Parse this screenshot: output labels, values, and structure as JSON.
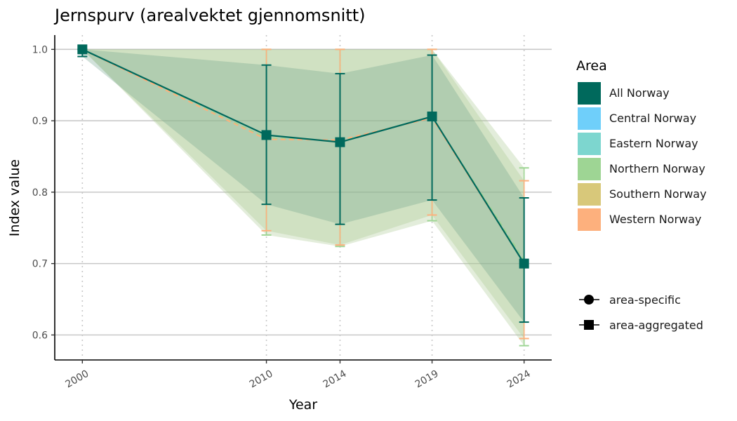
{
  "chart_data": {
    "type": "line",
    "title": "Jernspurv (arealvektet gjennomsnitt)",
    "xlabel": "Year",
    "ylabel": "Index value",
    "x": [
      2000,
      2010,
      2014,
      2019,
      2024
    ],
    "xlim": [
      1998.5,
      2025.5
    ],
    "ylim": [
      0.565,
      1.02
    ],
    "y_ticks": [
      0.6,
      0.7,
      0.8,
      0.9,
      1.0
    ],
    "y_tick_labels": [
      "0.6",
      "0.7",
      "0.8",
      "0.9",
      "1.0"
    ],
    "x_tick_labels": [
      "2000",
      "2010",
      "2014",
      "2019",
      "2024"
    ],
    "grid": {
      "horizontal_major": true,
      "vertical_dotted": true
    },
    "legend_position": "right",
    "legend_title": "Area",
    "areas": [
      {
        "name": "All Norway",
        "color": "#00695C"
      },
      {
        "name": "Central Norway",
        "color": "#6FCFFA"
      },
      {
        "name": "Eastern Norway",
        "color": "#7DD6CF"
      },
      {
        "name": "Northern Norway",
        "color": "#9ED594"
      },
      {
        "name": "Southern Norway",
        "color": "#D8C87A"
      },
      {
        "name": "Western Norway",
        "color": "#FDB07D"
      }
    ],
    "shape_legend": [
      {
        "name": "area-specific",
        "shape": "circle"
      },
      {
        "name": "area-aggregated",
        "shape": "square"
      }
    ],
    "series": [
      {
        "name": "All Norway",
        "role": "area-aggregated",
        "color": "#00695C",
        "values": [
          1.0,
          0.88,
          0.87,
          0.906,
          0.7
        ],
        "lower": [
          0.99,
          0.783,
          0.755,
          0.789,
          0.618
        ],
        "upper": [
          1.0,
          0.978,
          0.966,
          0.992,
          0.792
        ]
      },
      {
        "name": "Northern Norway",
        "role": "area-specific",
        "color": "#9ED594",
        "values": [
          1.0,
          0.876,
          0.872,
          0.905,
          0.705
        ],
        "lower": [
          1.0,
          0.74,
          0.724,
          0.76,
          0.585
        ],
        "upper": [
          1.0,
          1.0,
          1.0,
          1.0,
          0.834
        ]
      },
      {
        "name": "Western Norway",
        "role": "area-specific",
        "color": "#FDB07D",
        "values": [
          1.0,
          0.874,
          0.873,
          0.904,
          0.7
        ],
        "lower": [
          1.0,
          0.746,
          0.726,
          0.768,
          0.595
        ],
        "upper": [
          1.0,
          1.0,
          1.0,
          1.0,
          0.816
        ]
      }
    ]
  }
}
